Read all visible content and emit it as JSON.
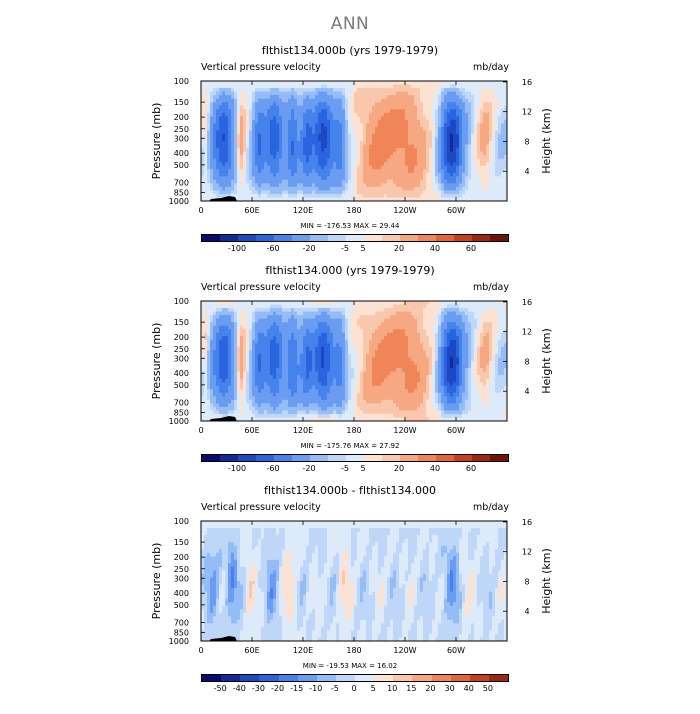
{
  "main_title": "ANN",
  "chart_data": [
    {
      "type": "heatmap",
      "title": "fIthist134.000b (yrs 1979-1979)",
      "left_string": "Vertical pressure velocity",
      "right_string": "mb/day",
      "ylabel": "Pressure (mb)",
      "y2label": "Height (km)",
      "y_ticks": [
        "100",
        "150",
        "200",
        "250",
        "300",
        "400",
        "500",
        "700",
        "850",
        "1000"
      ],
      "y2_ticks": [
        "16",
        "12",
        "8",
        "4"
      ],
      "x_ticks": [
        "0",
        "60E",
        "120E",
        "180",
        "120W",
        "60W"
      ],
      "stats": "MIN = -176.53   MAX =  29.44",
      "color_levels": [
        "-100",
        "-60",
        "-20",
        "-5",
        "5",
        "20",
        "40",
        "60"
      ],
      "colors": [
        "#0a0a6e",
        "#12289c",
        "#1c48c4",
        "#2a64de",
        "#4682ec",
        "#6a9cf2",
        "#94bcf6",
        "#bed6f8",
        "#dceafa",
        "#fbe2d2",
        "#f9c8ac",
        "#f6a882",
        "#f08658",
        "#e46434",
        "#c8401e",
        "#9c2812",
        "#6e1408"
      ]
    },
    {
      "type": "heatmap",
      "title": "fIthist134.000 (yrs 1979-1979)",
      "left_string": "Vertical pressure velocity",
      "right_string": "mb/day",
      "ylabel": "Pressure (mb)",
      "y2label": "Height (km)",
      "y_ticks": [
        "100",
        "150",
        "200",
        "250",
        "300",
        "400",
        "500",
        "700",
        "850",
        "1000"
      ],
      "y2_ticks": [
        "16",
        "12",
        "8",
        "4"
      ],
      "x_ticks": [
        "0",
        "60E",
        "120E",
        "180",
        "120W",
        "60W"
      ],
      "stats": "MIN = -175.76   MAX =  27.92",
      "color_levels": [
        "-100",
        "-60",
        "-20",
        "-5",
        "5",
        "20",
        "40",
        "60"
      ],
      "colors": [
        "#0a0a6e",
        "#12289c",
        "#1c48c4",
        "#2a64de",
        "#4682ec",
        "#6a9cf2",
        "#94bcf6",
        "#bed6f8",
        "#dceafa",
        "#fbe2d2",
        "#f9c8ac",
        "#f6a882",
        "#f08658",
        "#e46434",
        "#c8401e",
        "#9c2812",
        "#6e1408"
      ]
    },
    {
      "type": "heatmap",
      "title": "fIthist134.000b - fIthist134.000",
      "left_string": "Vertical pressure velocity",
      "right_string": "mb/day",
      "ylabel": "Pressure (mb)",
      "y2label": "Height (km)",
      "y_ticks": [
        "100",
        "150",
        "200",
        "250",
        "300",
        "400",
        "500",
        "700",
        "850",
        "1000"
      ],
      "y2_ticks": [
        "16",
        "12",
        "8",
        "4"
      ],
      "x_ticks": [
        "0",
        "60E",
        "120E",
        "180",
        "120W",
        "60W"
      ],
      "stats": "MIN = -19.53   MAX =  16.02",
      "color_levels": [
        "-50",
        "-40",
        "-30",
        "-20",
        "-15",
        "-10",
        "-5",
        "0",
        "5",
        "10",
        "15",
        "20",
        "30",
        "40",
        "50"
      ],
      "colors": [
        "#0a0a6e",
        "#12289c",
        "#1c48c4",
        "#2a64de",
        "#4682ec",
        "#6a9cf2",
        "#94bcf6",
        "#bed6f8",
        "#dceafa",
        "#fbe2d2",
        "#f9c8ac",
        "#f6a882",
        "#f08658",
        "#e46434",
        "#c8401e",
        "#9c2812"
      ]
    }
  ]
}
